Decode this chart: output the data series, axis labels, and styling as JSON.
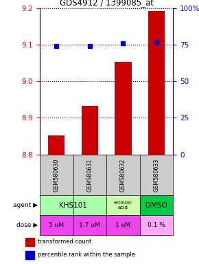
{
  "title": "GDS4912 / 1399085_at",
  "samples": [
    "GSM580630",
    "GSM580631",
    "GSM580632",
    "GSM580633"
  ],
  "bar_values": [
    8.852,
    8.932,
    9.053,
    9.192
  ],
  "percentile_values": [
    74,
    74,
    76,
    77
  ],
  "ylim_left": [
    8.8,
    9.2
  ],
  "ylim_right": [
    0,
    100
  ],
  "yticks_left": [
    8.8,
    8.9,
    9.0,
    9.1,
    9.2
  ],
  "yticks_right": [
    0,
    25,
    50,
    75,
    100
  ],
  "bar_color": "#cc0000",
  "dot_color": "#0000cc",
  "bar_bottom": 8.8,
  "dose_labels": [
    "5 uM",
    "1.7 uM",
    "1 uM",
    "0.1 %"
  ],
  "agent_col_colors": [
    "#aaffaa",
    "#aaffaa",
    "#ccffaa",
    "#00cc44"
  ],
  "dose_col_colors": [
    "#ee44ee",
    "#ee44ee",
    "#ee44ee",
    "#ffaaff"
  ]
}
